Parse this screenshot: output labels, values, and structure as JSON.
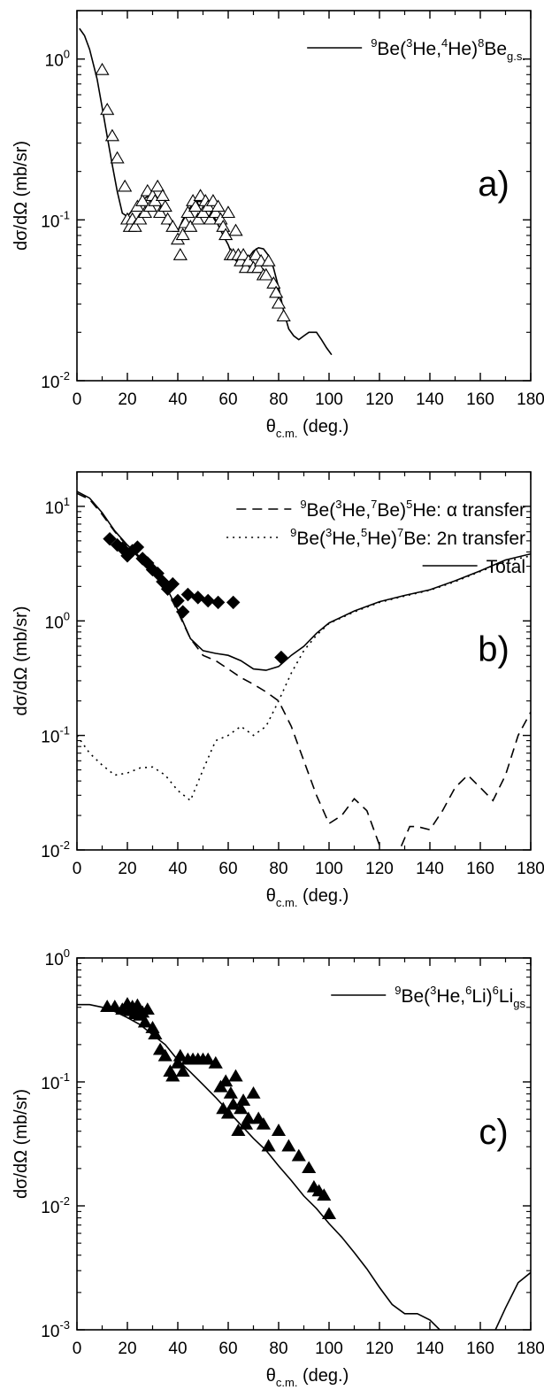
{
  "chart_data": [
    {
      "type": "scatter",
      "panel_label": "a)",
      "xlabel": {
        "base": "θ",
        "sub": "c.m.",
        "rest": " (deg.)"
      },
      "ylabel": "dσ/dΩ (mb/sr)",
      "xlim": [
        0,
        180
      ],
      "ylim": [
        0.01,
        2
      ],
      "yscale": "log",
      "xticks": [
        0,
        20,
        40,
        60,
        80,
        100,
        120,
        140,
        160,
        180
      ],
      "yticks": [
        {
          "value": 0.01,
          "base": "10",
          "exp": "-2"
        },
        {
          "value": 0.1,
          "base": "10",
          "exp": "-1"
        },
        {
          "value": 1,
          "base": "10",
          "exp": "0"
        }
      ],
      "legend": [
        {
          "style": "solid",
          "parts": [
            {
              "t": "9",
              "k": "sup"
            },
            {
              "t": "Be(",
              "k": "n"
            },
            {
              "t": "3",
              "k": "sup"
            },
            {
              "t": "He,",
              "k": "n"
            },
            {
              "t": "4",
              "k": "sup"
            },
            {
              "t": "He)",
              "k": "n"
            },
            {
              "t": "8",
              "k": "sup"
            },
            {
              "t": "Be",
              "k": "n"
            },
            {
              "t": "g.s.",
              "k": "sub"
            }
          ]
        }
      ],
      "legend_position": "top-right",
      "series": [
        {
          "kind": "line",
          "style": "solid",
          "x": [
            1,
            3,
            5,
            8,
            10,
            12,
            14,
            16,
            18,
            20,
            22,
            25,
            28,
            30,
            32,
            35,
            38,
            40,
            42,
            45,
            48,
            50,
            52,
            55,
            58,
            60,
            62,
            65,
            68,
            70,
            72,
            74,
            76,
            78,
            80,
            82,
            84,
            86,
            88,
            90,
            92,
            95,
            97,
            99,
            101
          ],
          "y": [
            1.55,
            1.4,
            1.15,
            0.75,
            0.5,
            0.33,
            0.22,
            0.15,
            0.11,
            0.105,
            0.115,
            0.13,
            0.14,
            0.138,
            0.13,
            0.105,
            0.085,
            0.085,
            0.1,
            0.12,
            0.13,
            0.13,
            0.12,
            0.1,
            0.08,
            0.07,
            0.058,
            0.052,
            0.058,
            0.064,
            0.067,
            0.066,
            0.06,
            0.05,
            0.038,
            0.027,
            0.021,
            0.019,
            0.018,
            0.019,
            0.02,
            0.02,
            0.018,
            0.016,
            0.0145
          ]
        },
        {
          "kind": "points",
          "marker": "triangle-open",
          "x": [
            10,
            12,
            14,
            16,
            19,
            20,
            21,
            22,
            23,
            24,
            25,
            26,
            27,
            28,
            29,
            30,
            31,
            32,
            33,
            34,
            35,
            36,
            38,
            40,
            41,
            42,
            43,
            44,
            45,
            46,
            47,
            48,
            49,
            50,
            51,
            52,
            53,
            54,
            55,
            56,
            57,
            58,
            59,
            60,
            61,
            62,
            63,
            64,
            65,
            66,
            67,
            68,
            70,
            71,
            72,
            73,
            74,
            75,
            76,
            78,
            79,
            80,
            82
          ],
          "y": [
            0.85,
            0.48,
            0.33,
            0.24,
            0.16,
            0.1,
            0.09,
            0.1,
            0.09,
            0.12,
            0.1,
            0.13,
            0.11,
            0.15,
            0.12,
            0.14,
            0.13,
            0.16,
            0.11,
            0.14,
            0.12,
            0.1,
            0.09,
            0.075,
            0.06,
            0.08,
            0.095,
            0.11,
            0.09,
            0.13,
            0.12,
            0.1,
            0.14,
            0.11,
            0.13,
            0.12,
            0.1,
            0.13,
            0.11,
            0.12,
            0.1,
            0.09,
            0.08,
            0.11,
            0.06,
            0.06,
            0.085,
            0.06,
            0.055,
            0.06,
            0.05,
            0.055,
            0.05,
            0.06,
            0.05,
            0.055,
            0.045,
            0.045,
            0.055,
            0.04,
            0.035,
            0.03,
            0.025
          ]
        }
      ]
    },
    {
      "type": "scatter",
      "panel_label": "b)",
      "xlabel": {
        "base": "θ",
        "sub": "c.m.",
        "rest": " (deg.)"
      },
      "ylabel": "dσ/dΩ (mb/sr)",
      "xlim": [
        0,
        180
      ],
      "ylim": [
        0.01,
        20
      ],
      "yscale": "log",
      "xticks": [
        0,
        20,
        40,
        60,
        80,
        100,
        120,
        140,
        160,
        180
      ],
      "yticks": [
        {
          "value": 0.01,
          "base": "10",
          "exp": "-2"
        },
        {
          "value": 0.1,
          "base": "10",
          "exp": "-1"
        },
        {
          "value": 1,
          "base": "10",
          "exp": "0"
        },
        {
          "value": 10,
          "base": "10",
          "exp": "1"
        }
      ],
      "legend": [
        {
          "style": "dashed",
          "parts": [
            {
              "t": "9",
              "k": "sup"
            },
            {
              "t": "Be(",
              "k": "n"
            },
            {
              "t": "3",
              "k": "sup"
            },
            {
              "t": "He,",
              "k": "n"
            },
            {
              "t": "7",
              "k": "sup"
            },
            {
              "t": "Be)",
              "k": "n"
            },
            {
              "t": "5",
              "k": "sup"
            },
            {
              "t": "He: α transfer",
              "k": "n"
            }
          ]
        },
        {
          "style": "dotted",
          "parts": [
            {
              "t": "9",
              "k": "sup"
            },
            {
              "t": "Be(",
              "k": "n"
            },
            {
              "t": "3",
              "k": "sup"
            },
            {
              "t": "He,",
              "k": "n"
            },
            {
              "t": "5",
              "k": "sup"
            },
            {
              "t": "He)",
              "k": "n"
            },
            {
              "t": "7",
              "k": "sup"
            },
            {
              "t": "Be: 2n transfer",
              "k": "n"
            }
          ]
        },
        {
          "style": "solid",
          "parts": [
            {
              "t": "Total",
              "k": "n"
            }
          ]
        }
      ],
      "legend_position": "top-right",
      "series": [
        {
          "kind": "line",
          "style": "dashed",
          "x": [
            0,
            5,
            10,
            15,
            20,
            25,
            30,
            35,
            40,
            45,
            50,
            55,
            60,
            65,
            70,
            75,
            80,
            85,
            90,
            95,
            100,
            105,
            110,
            115,
            120,
            123,
            125,
            128,
            132,
            135,
            140,
            145,
            150,
            155,
            160,
            165,
            170,
            175,
            180
          ],
          "y": [
            13,
            11.5,
            8.5,
            6,
            4.5,
            3.5,
            2.8,
            2,
            1.2,
            0.7,
            0.5,
            0.45,
            0.38,
            0.32,
            0.28,
            0.24,
            0.2,
            0.12,
            0.06,
            0.03,
            0.017,
            0.02,
            0.028,
            0.022,
            0.011,
            0.009,
            0.008,
            0.01,
            0.016,
            0.016,
            0.015,
            0.022,
            0.035,
            0.045,
            0.035,
            0.027,
            0.045,
            0.1,
            0.16
          ]
        },
        {
          "kind": "line",
          "style": "dotted",
          "x": [
            0,
            5,
            10,
            15,
            20,
            25,
            30,
            35,
            40,
            45,
            50,
            55,
            60,
            65,
            70,
            75,
            80,
            85,
            90,
            95,
            100,
            110,
            120,
            130,
            140,
            150,
            160,
            170,
            180
          ],
          "y": [
            0.1,
            0.07,
            0.055,
            0.045,
            0.047,
            0.052,
            0.053,
            0.045,
            0.033,
            0.027,
            0.05,
            0.09,
            0.1,
            0.12,
            0.1,
            0.12,
            0.2,
            0.35,
            0.55,
            0.75,
            0.95,
            1.2,
            1.45,
            1.65,
            1.85,
            2.2,
            2.7,
            3.3,
            3.7
          ]
        },
        {
          "kind": "line",
          "style": "solid",
          "x": [
            0,
            5,
            10,
            15,
            20,
            25,
            30,
            35,
            40,
            45,
            50,
            55,
            60,
            65,
            70,
            75,
            80,
            85,
            90,
            95,
            100,
            110,
            120,
            130,
            140,
            150,
            160,
            170,
            180
          ],
          "y": [
            13.5,
            11.8,
            8.8,
            6.1,
            4.6,
            3.6,
            2.85,
            2.05,
            1.25,
            0.7,
            0.55,
            0.52,
            0.5,
            0.45,
            0.38,
            0.37,
            0.4,
            0.5,
            0.6,
            0.78,
            0.96,
            1.22,
            1.47,
            1.67,
            1.87,
            2.24,
            2.74,
            3.4,
            3.85
          ]
        },
        {
          "kind": "points",
          "marker": "diamond-filled",
          "x": [
            13,
            16,
            18,
            20,
            22,
            24,
            26,
            28,
            30,
            32,
            34,
            36,
            38,
            40,
            42,
            44,
            48,
            52,
            56,
            62,
            81
          ],
          "y": [
            5.2,
            4.6,
            4.3,
            3.7,
            4.1,
            4.4,
            3.5,
            3.2,
            2.8,
            2.6,
            2.2,
            1.9,
            2.1,
            1.5,
            1.2,
            1.7,
            1.6,
            1.5,
            1.45,
            1.45,
            0.48
          ]
        }
      ]
    },
    {
      "type": "scatter",
      "panel_label": "c)",
      "xlabel": {
        "base": "θ",
        "sub": "c.m.",
        "rest": " (deg.)"
      },
      "ylabel": "dσ/dΩ (mb/sr)",
      "xlim": [
        0,
        180
      ],
      "ylim": [
        0.001,
        1
      ],
      "yscale": "log",
      "xticks": [
        0,
        20,
        40,
        60,
        80,
        100,
        120,
        140,
        160,
        180
      ],
      "yticks": [
        {
          "value": 0.001,
          "base": "10",
          "exp": "-3"
        },
        {
          "value": 0.01,
          "base": "10",
          "exp": "-2"
        },
        {
          "value": 0.1,
          "base": "10",
          "exp": "-1"
        },
        {
          "value": 1,
          "base": "10",
          "exp": "0"
        }
      ],
      "legend": [
        {
          "style": "solid",
          "parts": [
            {
              "t": "9",
              "k": "sup"
            },
            {
              "t": "Be(",
              "k": "n"
            },
            {
              "t": "3",
              "k": "sup"
            },
            {
              "t": "He,",
              "k": "n"
            },
            {
              "t": "6",
              "k": "sup"
            },
            {
              "t": "Li)",
              "k": "n"
            },
            {
              "t": "6",
              "k": "sup"
            },
            {
              "t": "Li",
              "k": "n"
            },
            {
              "t": "gs",
              "k": "sub"
            }
          ]
        }
      ],
      "legend_position": "top-right",
      "series": [
        {
          "kind": "line",
          "style": "solid",
          "x": [
            0,
            5,
            10,
            15,
            20,
            25,
            30,
            35,
            40,
            45,
            50,
            55,
            60,
            65,
            70,
            75,
            80,
            85,
            90,
            95,
            100,
            105,
            110,
            115,
            120,
            125,
            130,
            135,
            140,
            145,
            148,
            150,
            160,
            163,
            166,
            170,
            175,
            180
          ],
          "y": [
            0.42,
            0.42,
            0.4,
            0.37,
            0.33,
            0.29,
            0.24,
            0.2,
            0.15,
            0.12,
            0.095,
            0.075,
            0.058,
            0.045,
            0.035,
            0.028,
            0.021,
            0.016,
            0.012,
            0.0095,
            0.0072,
            0.0056,
            0.0042,
            0.0031,
            0.0022,
            0.0016,
            0.00135,
            0.00135,
            0.0012,
            0.00095,
            0.00085,
            0.0008,
            0.0008,
            0.00085,
            0.001,
            0.0015,
            0.0024,
            0.0029
          ]
        },
        {
          "kind": "points",
          "marker": "triangle-filled",
          "x": [
            12,
            15,
            18,
            20,
            21,
            22,
            23,
            24,
            25,
            26,
            27,
            28,
            30,
            31,
            33,
            35,
            37,
            38,
            40,
            41,
            42,
            44,
            46,
            48,
            50,
            52,
            55,
            57,
            58,
            59,
            60,
            61,
            62,
            63,
            64,
            65,
            66,
            67,
            68,
            70,
            72,
            74,
            76,
            80,
            84,
            88,
            92,
            94,
            96,
            98,
            100
          ],
          "y": [
            0.4,
            0.4,
            0.38,
            0.42,
            0.37,
            0.4,
            0.35,
            0.41,
            0.34,
            0.36,
            0.3,
            0.38,
            0.27,
            0.24,
            0.18,
            0.16,
            0.12,
            0.11,
            0.14,
            0.16,
            0.12,
            0.15,
            0.15,
            0.15,
            0.15,
            0.15,
            0.14,
            0.09,
            0.06,
            0.1,
            0.055,
            0.08,
            0.065,
            0.11,
            0.04,
            0.06,
            0.07,
            0.045,
            0.05,
            0.08,
            0.05,
            0.045,
            0.03,
            0.04,
            0.03,
            0.025,
            0.02,
            0.014,
            0.013,
            0.012,
            0.0085
          ]
        }
      ]
    }
  ]
}
